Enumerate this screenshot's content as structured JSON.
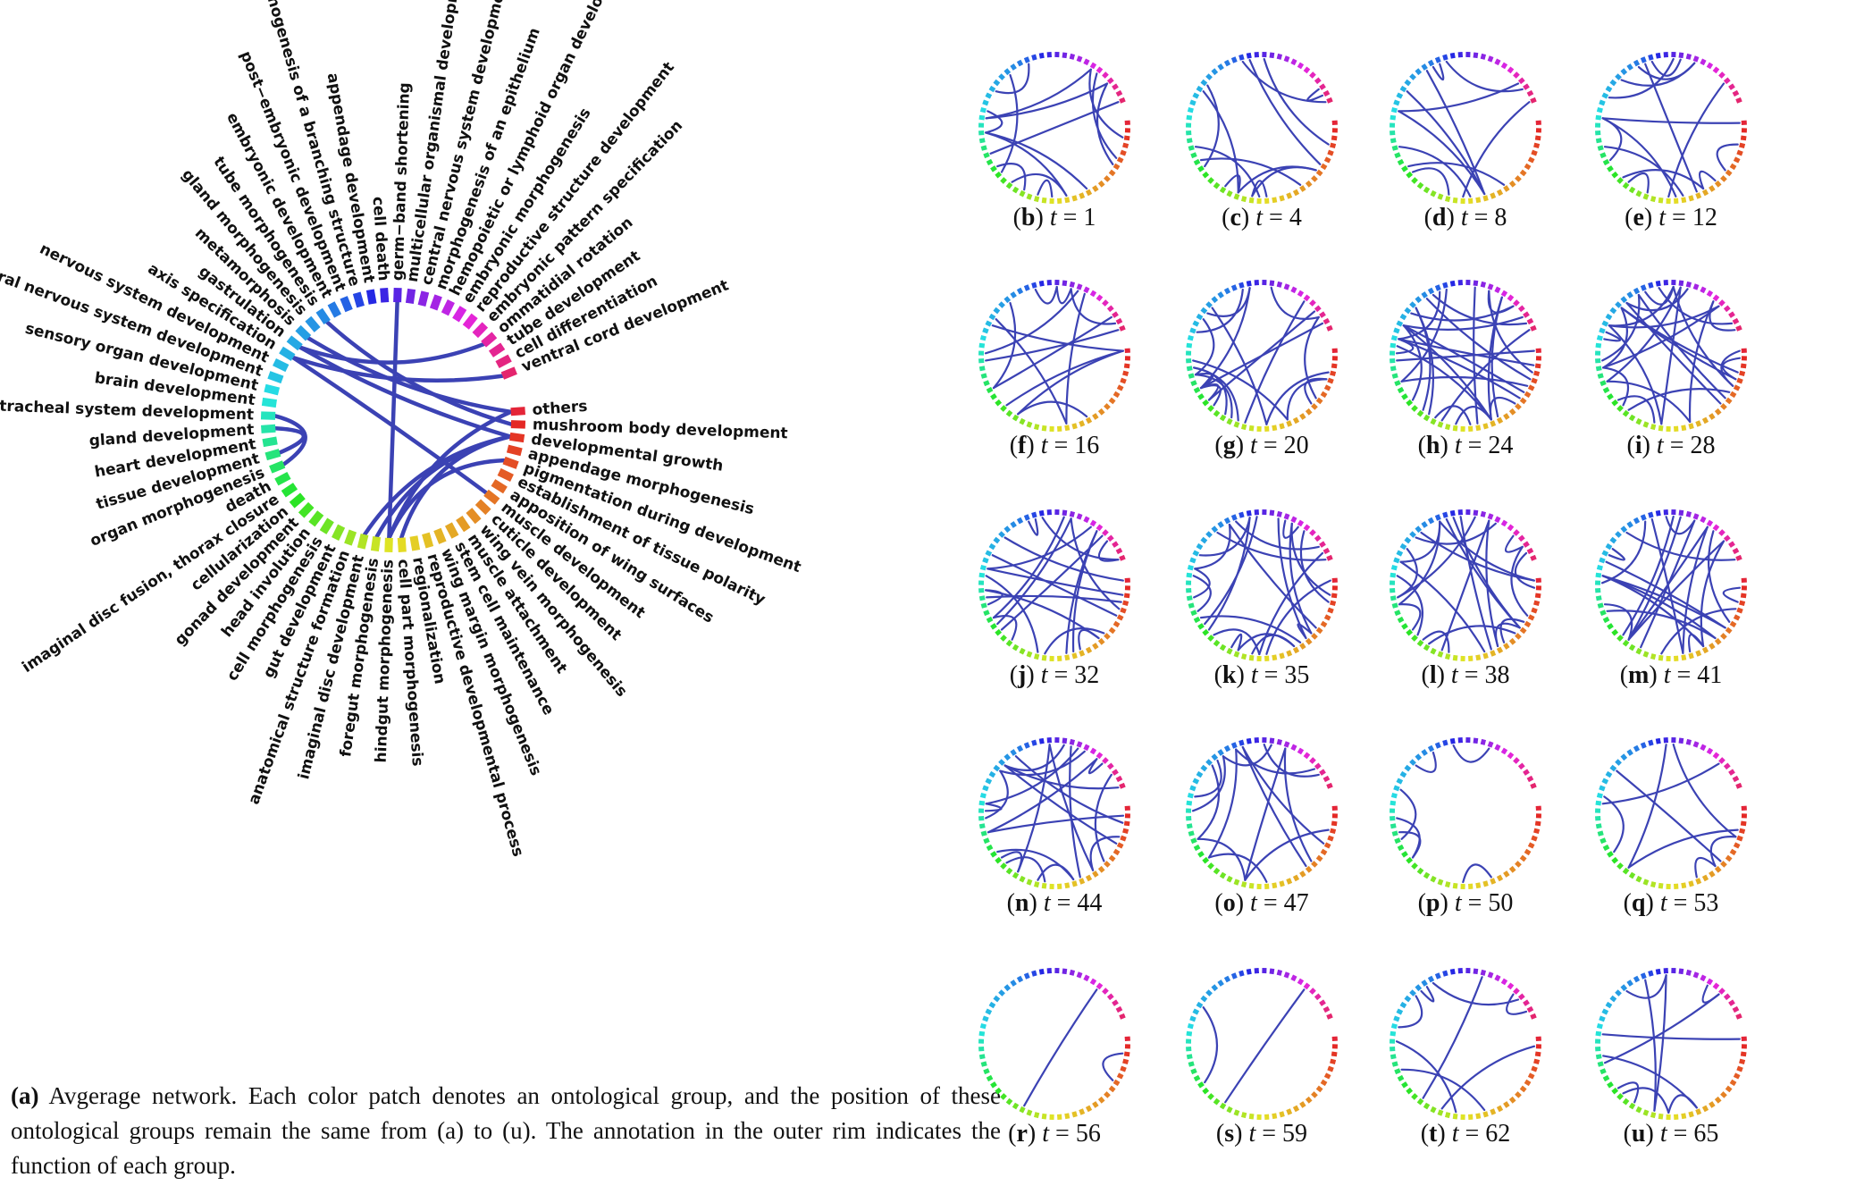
{
  "main_panel": {
    "labels": [
      "others",
      "mushroom body development",
      "developmental growth",
      "appendage morphogenesis",
      "pigmentation during development",
      "establishment of tissue polarity",
      "apposition of wing surfaces",
      "muscle development",
      "cuticle development",
      "wing vein morphogenesis",
      "muscle attachment",
      "stem cell maintenance",
      "wing margin morphogenesis",
      "reproductive developmental process",
      "regionalization",
      "cell part morphogenesis",
      "hindgut morphogenesis",
      "foregut morphogenesis",
      "imaginal disc development",
      "anatomical structure formation",
      "gut development",
      "cell morphogenesis",
      "head involution",
      "gonad development",
      "cellularization",
      "imaginal disc fusion, thorax closure",
      "death",
      "organ morphogenesis",
      "tissue development",
      "heart development",
      "gland development",
      "open tracheal system development",
      "brain development",
      "sensory organ development",
      "peripheral nervous system development",
      "nervous system development",
      "axis specification",
      "gastrulation",
      "metamorphosis",
      "gland morphogenesis",
      "tube morphogenesis",
      "embryonic development",
      "post−embryonic development",
      "morphogenesis of a branching structure",
      "appendage development",
      "cell death",
      "germ−band shortening",
      "multicellular organismal development",
      "central nervous system development",
      "morphogenesis of an epithelium",
      "hemopoietic or lymphoid organ development",
      "embryonic morphogenesis",
      "reproductive structure development",
      "embryonic pattern specification",
      "ommatidial rotation",
      "tube development",
      "cell differentiation",
      "ventral cord development"
    ],
    "edge_color": "#3b42b4"
  },
  "caption": {
    "panel_id": "(a)",
    "text": " Avgerage network. Each color patch denotes an ontological group, and the position of these ontological groups remain the same from (a) to (u). The annotation in the outer rim indicates the function of each group."
  },
  "panels": [
    {
      "id": "b",
      "t": "1"
    },
    {
      "id": "c",
      "t": "4"
    },
    {
      "id": "d",
      "t": "8"
    },
    {
      "id": "e",
      "t": "12"
    },
    {
      "id": "f",
      "t": "16"
    },
    {
      "id": "g",
      "t": "20"
    },
    {
      "id": "h",
      "t": "24"
    },
    {
      "id": "i",
      "t": "28"
    },
    {
      "id": "j",
      "t": "32"
    },
    {
      "id": "k",
      "t": "35"
    },
    {
      "id": "l",
      "t": "38"
    },
    {
      "id": "m",
      "t": "41"
    },
    {
      "id": "n",
      "t": "44"
    },
    {
      "id": "o",
      "t": "47"
    },
    {
      "id": "p",
      "t": "50"
    },
    {
      "id": "q",
      "t": "53"
    },
    {
      "id": "r",
      "t": "56"
    },
    {
      "id": "s",
      "t": "59"
    },
    {
      "id": "t",
      "t": "62"
    },
    {
      "id": "u",
      "t": "65"
    }
  ],
  "label_prefix_t": "t = "
}
